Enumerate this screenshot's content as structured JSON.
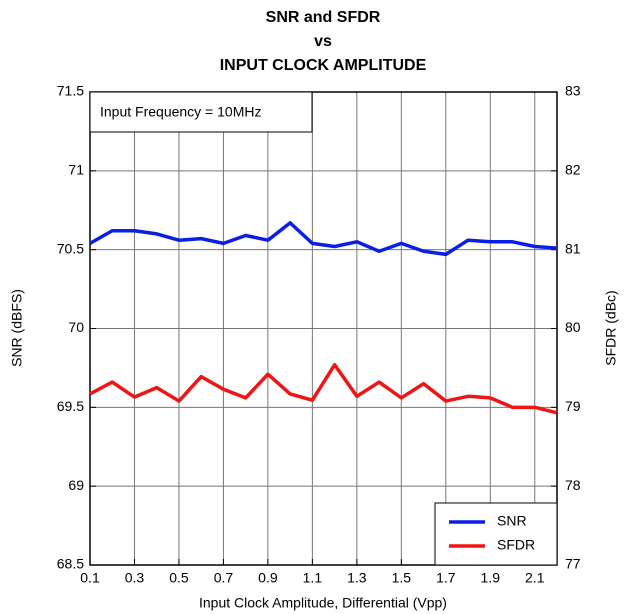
{
  "chart_data": {
    "type": "line",
    "title": [
      "SNR and SFDR",
      "vs",
      "INPUT CLOCK AMPLITUDE"
    ],
    "xlabel": "Input Clock Amplitude, Differential (Vpp)",
    "ylabel": "SNR (dBFS)",
    "y2label": "SFDR (dBc)",
    "annotation": "Input Frequency = 10MHz",
    "x": [
      0.1,
      0.2,
      0.3,
      0.4,
      0.5,
      0.6,
      0.7,
      0.8,
      0.9,
      1.0,
      1.1,
      1.2,
      1.3,
      1.4,
      1.5,
      1.6,
      1.7,
      1.8,
      1.9,
      2.0,
      2.1,
      2.2
    ],
    "series": [
      {
        "name": "SNR",
        "color": "#0a1ee6",
        "values": [
          70.54,
          70.62,
          70.62,
          70.6,
          70.56,
          70.57,
          70.54,
          70.59,
          70.56,
          70.67,
          70.54,
          70.52,
          70.55,
          70.49,
          70.54,
          70.49,
          70.47,
          70.56,
          70.55,
          70.55,
          70.52,
          70.51
        ]
      },
      {
        "name": "SFDR",
        "color": "#f01414",
        "axis": "y2",
        "values": [
          79.17,
          79.32,
          79.13,
          79.25,
          79.08,
          79.39,
          79.23,
          79.12,
          79.42,
          79.17,
          79.09,
          79.54,
          79.14,
          79.32,
          79.12,
          79.3,
          79.08,
          79.14,
          79.12,
          79.0,
          79.0,
          78.93
        ]
      }
    ],
    "xlim": [
      0.1,
      2.2
    ],
    "xticks": [
      0.1,
      0.3,
      0.5,
      0.7,
      0.9,
      1.1,
      1.3,
      1.5,
      1.7,
      1.9,
      2.1
    ],
    "ylim": [
      68.5,
      71.5
    ],
    "yticks": [
      68.5,
      69,
      69.5,
      70,
      70.5,
      71,
      71.5
    ],
    "y2lim": [
      77,
      83
    ],
    "y2ticks": [
      77,
      78,
      79,
      80,
      81,
      82,
      83
    ],
    "grid": true,
    "legend": "lower right"
  }
}
